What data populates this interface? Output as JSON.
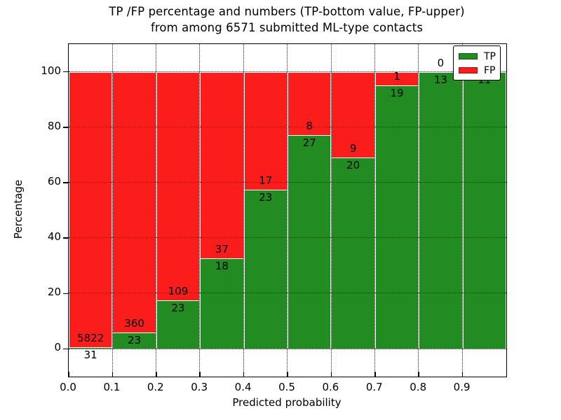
{
  "title_line1": "TP /FP percentage and numbers (TP-bottom value, FP-upper)",
  "title_line2": "from among 6571 submitted ML-type contacts",
  "chart_data": {
    "type": "bar",
    "stacked": true,
    "title": "TP /FP percentage and numbers (TP-bottom value, FP-upper) from among 6571 submitted ML-type contacts",
    "xlabel": "Predicted probability",
    "ylabel": "Percentage",
    "total_contacts": 6571,
    "xlim": [
      0.0,
      1.0
    ],
    "ylim": [
      -10,
      110
    ],
    "grid": "dotted",
    "legend_position": "upper right",
    "x_ticks": [
      {
        "label": "0.0",
        "value": 0.0
      },
      {
        "label": "0.1",
        "value": 0.1
      },
      {
        "label": "0.2",
        "value": 0.2
      },
      {
        "label": "0.3",
        "value": 0.3
      },
      {
        "label": "0.4",
        "value": 0.4
      },
      {
        "label": "0.5",
        "value": 0.5
      },
      {
        "label": "0.6",
        "value": 0.6
      },
      {
        "label": "0.7",
        "value": 0.7
      },
      {
        "label": "0.8",
        "value": 0.8
      },
      {
        "label": "0.9",
        "value": 0.9
      }
    ],
    "y_ticks": [
      {
        "label": "0",
        "value": 0
      },
      {
        "label": "20",
        "value": 20
      },
      {
        "label": "40",
        "value": 40
      },
      {
        "label": "60",
        "value": 60
      },
      {
        "label": "80",
        "value": 80
      },
      {
        "label": "100",
        "value": 100
      }
    ],
    "series": [
      {
        "name": "TP",
        "color": "#228b22"
      },
      {
        "name": "FP",
        "color": "#fb1c1c"
      }
    ],
    "bar_width": 0.1,
    "bins": [
      {
        "range": "0.0-0.1",
        "x_start": 0.0,
        "tp_count": 31,
        "fp_count": 5822,
        "tp_pct": 0.53,
        "fp_pct": 99.47
      },
      {
        "range": "0.1-0.2",
        "x_start": 0.1,
        "tp_count": 23,
        "fp_count": 360,
        "tp_pct": 6.01,
        "fp_pct": 93.99
      },
      {
        "range": "0.2-0.3",
        "x_start": 0.2,
        "tp_count": 23,
        "fp_count": 109,
        "tp_pct": 17.42,
        "fp_pct": 82.58
      },
      {
        "range": "0.3-0.4",
        "x_start": 0.3,
        "tp_count": 18,
        "fp_count": 37,
        "tp_pct": 32.73,
        "fp_pct": 67.27
      },
      {
        "range": "0.4-0.5",
        "x_start": 0.4,
        "tp_count": 23,
        "fp_count": 17,
        "tp_pct": 57.5,
        "fp_pct": 42.5
      },
      {
        "range": "0.5-0.6",
        "x_start": 0.5,
        "tp_count": 27,
        "fp_count": 8,
        "tp_pct": 77.14,
        "fp_pct": 22.86
      },
      {
        "range": "0.6-0.7",
        "x_start": 0.6,
        "tp_count": 20,
        "fp_count": 9,
        "tp_pct": 68.97,
        "fp_pct": 31.03
      },
      {
        "range": "0.7-0.8",
        "x_start": 0.7,
        "tp_count": 19,
        "fp_count": 1,
        "tp_pct": 95.0,
        "fp_pct": 5.0
      },
      {
        "range": "0.8-0.9",
        "x_start": 0.8,
        "tp_count": 13,
        "fp_count": 0,
        "tp_pct": 100.0,
        "fp_pct": 0.0
      },
      {
        "range": "0.9-1.0",
        "x_start": 0.9,
        "tp_count": 11,
        "fp_count": 0,
        "tp_pct": 100.0,
        "fp_pct": 0.0
      }
    ]
  }
}
